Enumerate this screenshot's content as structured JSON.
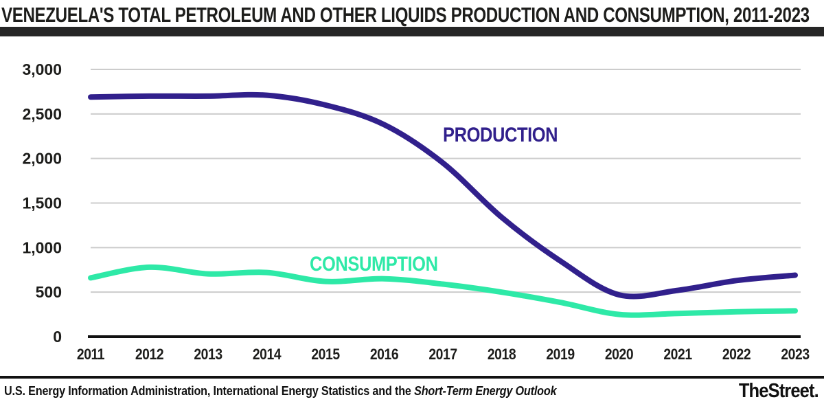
{
  "header": {
    "title": "VENEZUELA'S TOTAL PETROLEUM AND OTHER LIQUIDS PRODUCTION AND CONSUMPTION, 2011-2023"
  },
  "chart_data": {
    "type": "line",
    "title": "VENEZUELA'S TOTAL PETROLEUM AND OTHER LIQUIDS PRODUCTION AND CONSUMPTION, 2011-2023",
    "categories": [
      "2011",
      "2012",
      "2013",
      "2014",
      "2015",
      "2016",
      "2017",
      "2018",
      "2019",
      "2020",
      "2021",
      "2022",
      "2023"
    ],
    "series": [
      {
        "name": "PRODUCTION",
        "color": "#31208c",
        "values": [
          2690,
          2700,
          2700,
          2710,
          2600,
          2380,
          1950,
          1340,
          850,
          470,
          520,
          630,
          690
        ]
      },
      {
        "name": "CONSUMPTION",
        "color": "#2ee9a7",
        "values": [
          660,
          780,
          705,
          720,
          620,
          650,
          590,
          500,
          385,
          250,
          260,
          280,
          290
        ]
      }
    ],
    "xlabel": "",
    "ylabel": "",
    "ylim": [
      0,
      3000
    ],
    "yticks": [
      0,
      500,
      1000,
      1500,
      2000,
      2500,
      3000
    ],
    "ytick_labels": [
      "0",
      "500",
      "1,000",
      "1,500",
      "2,000",
      "2,500",
      "3,000"
    ],
    "grid": true,
    "legend_position": "inline-labels"
  },
  "footer": {
    "source_regular": "U.S. Energy Information Administration, International Energy Statistics and the ",
    "source_italic": "Short-Term Energy Outlook",
    "logo": "TheStreet."
  },
  "colors": {
    "title_text": "#1d1d1b",
    "title_bar": "#262626",
    "grid_line": "#cccccc",
    "axis_line": "#111111",
    "production": "#31208c",
    "consumption": "#2ee9a7"
  }
}
